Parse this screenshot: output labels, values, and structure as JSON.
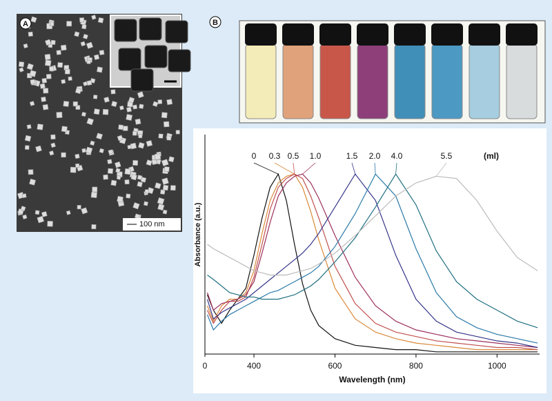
{
  "panels": {
    "a": {
      "label": "A",
      "scale_bar": "100 nm"
    },
    "b": {
      "label": "B"
    }
  },
  "chart_data": {
    "type": "line",
    "xlabel": "Wavelength (nm)",
    "ylabel": "Absorbance (a.u.)",
    "legend_unit": "(ml)",
    "x": [
      285,
      300,
      320,
      340,
      360,
      380,
      400,
      420,
      440,
      460,
      480,
      500,
      520,
      540,
      560,
      600,
      650,
      700,
      750,
      800,
      850,
      900,
      950,
      1000,
      1050,
      1100
    ],
    "series": [
      {
        "name": "0",
        "color": "#111111",
        "values": [
          0.27,
          0.2,
          0.14,
          0.2,
          0.25,
          0.3,
          0.45,
          0.62,
          0.76,
          0.82,
          0.7,
          0.5,
          0.32,
          0.2,
          0.13,
          0.07,
          0.04,
          0.03,
          0.02,
          0.02,
          0.01,
          0.01,
          0.01,
          0.01,
          0.01,
          0.01
        ]
      },
      {
        "name": "0.3",
        "color": "#d9893a",
        "values": [
          0.22,
          0.15,
          0.22,
          0.25,
          0.25,
          0.28,
          0.38,
          0.55,
          0.7,
          0.78,
          0.81,
          0.82,
          0.76,
          0.65,
          0.52,
          0.3,
          0.16,
          0.1,
          0.07,
          0.05,
          0.04,
          0.03,
          0.02,
          0.02,
          0.02,
          0.02
        ]
      },
      {
        "name": "0.5",
        "color": "#c0504d",
        "values": [
          0.2,
          0.14,
          0.2,
          0.24,
          0.24,
          0.26,
          0.35,
          0.5,
          0.66,
          0.76,
          0.8,
          0.82,
          0.8,
          0.72,
          0.62,
          0.4,
          0.23,
          0.14,
          0.1,
          0.08,
          0.06,
          0.05,
          0.04,
          0.03,
          0.03,
          0.02
        ]
      },
      {
        "name": "1.0",
        "color": "#9c2f5c",
        "values": [
          0.28,
          0.2,
          0.23,
          0.24,
          0.25,
          0.27,
          0.33,
          0.46,
          0.6,
          0.72,
          0.78,
          0.81,
          0.82,
          0.78,
          0.71,
          0.54,
          0.35,
          0.22,
          0.15,
          0.11,
          0.09,
          0.07,
          0.06,
          0.05,
          0.04,
          0.03
        ]
      },
      {
        "name": "1.5",
        "color": "#35358a",
        "values": [
          0.25,
          0.16,
          0.19,
          0.21,
          0.23,
          0.25,
          0.28,
          0.31,
          0.34,
          0.37,
          0.4,
          0.43,
          0.46,
          0.5,
          0.55,
          0.67,
          0.82,
          0.7,
          0.45,
          0.25,
          0.15,
          0.1,
          0.08,
          0.06,
          0.05,
          0.03
        ]
      },
      {
        "name": "2.0",
        "color": "#2a7aa8",
        "values": [
          0.18,
          0.11,
          0.15,
          0.18,
          0.2,
          0.22,
          0.24,
          0.26,
          0.28,
          0.29,
          0.31,
          0.33,
          0.35,
          0.37,
          0.4,
          0.49,
          0.64,
          0.82,
          0.72,
          0.48,
          0.28,
          0.17,
          0.12,
          0.09,
          0.07,
          0.05
        ]
      },
      {
        "name": "4.0",
        "color": "#1f6f80",
        "values": [
          0.36,
          0.34,
          0.31,
          0.28,
          0.27,
          0.26,
          0.26,
          0.25,
          0.25,
          0.25,
          0.26,
          0.27,
          0.29,
          0.31,
          0.34,
          0.42,
          0.53,
          0.67,
          0.82,
          0.68,
          0.47,
          0.33,
          0.25,
          0.2,
          0.15,
          0.12
        ]
      },
      {
        "name": "5.5",
        "color": "#bbbbbb",
        "values": [
          0.5,
          0.48,
          0.46,
          0.44,
          0.42,
          0.4,
          0.38,
          0.37,
          0.36,
          0.36,
          0.36,
          0.37,
          0.38,
          0.39,
          0.41,
          0.46,
          0.54,
          0.63,
          0.72,
          0.78,
          0.81,
          0.8,
          0.7,
          0.56,
          0.44,
          0.38
        ]
      }
    ],
    "xlim": [
      279,
      1105
    ],
    "ylim": [
      0,
      1
    ],
    "xticks": [
      400,
      600,
      800,
      1000
    ],
    "yticks": [
      0
    ]
  }
}
